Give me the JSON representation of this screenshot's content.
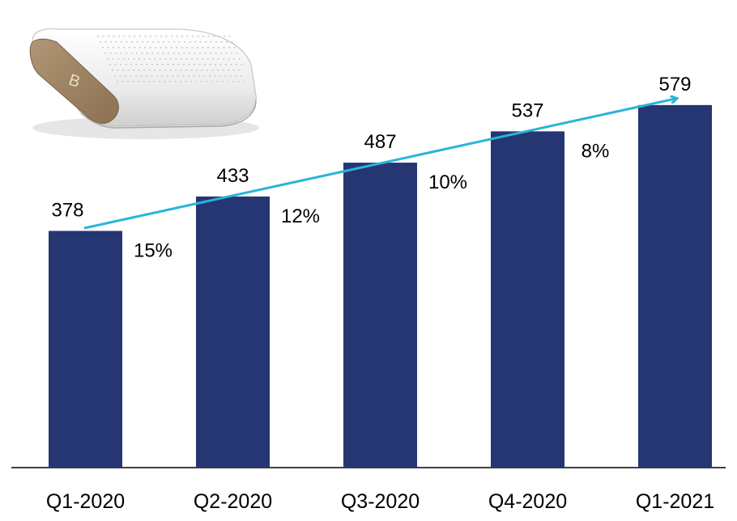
{
  "chart_data": {
    "type": "bar",
    "categories": [
      "Q1-2020",
      "Q2-2020",
      "Q3-2020",
      "Q4-2020",
      "Q1-2021"
    ],
    "values": [
      378,
      433,
      487,
      537,
      579
    ],
    "growth_labels": [
      "15%",
      "12%",
      "10%",
      "8%"
    ],
    "ylim": [
      0,
      600
    ],
    "grid": false,
    "legend": "none",
    "trend_arrow": true
  },
  "colors": {
    "bar": "#253673",
    "trend_arrow": "#29b5d8",
    "axis": "#000000",
    "text": "#000000",
    "device_body": "#f1f1f1",
    "device_shadow": "#c9c9c9",
    "device_wood": "#a08464"
  },
  "image": {
    "icon": "device-illustration-icon"
  }
}
